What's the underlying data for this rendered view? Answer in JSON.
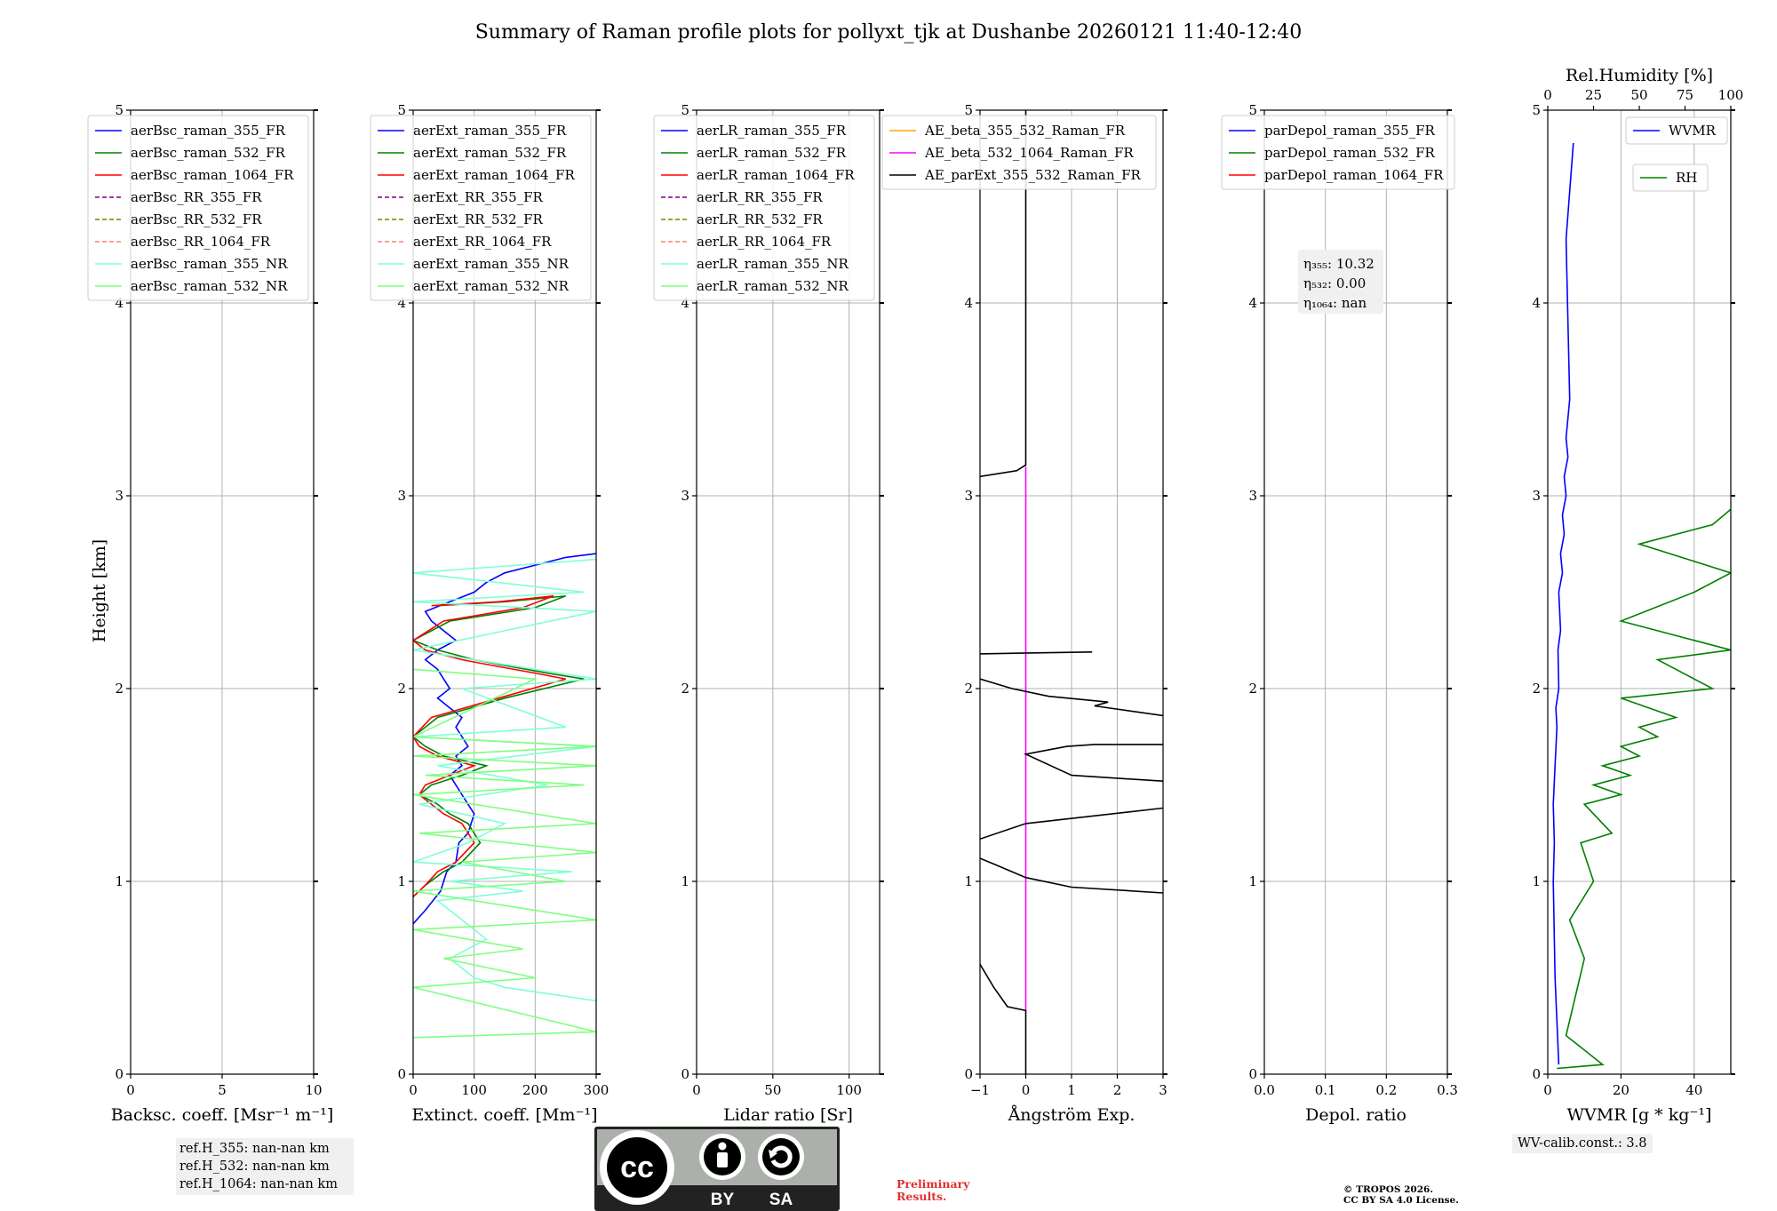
{
  "title": "Summary of Raman profile plots for pollyxt_tjk at Dushanbe 20260121 11:40-12:40",
  "height_axis_label": "Height [km]",
  "panels": [
    {
      "id": "bsc",
      "xlabel": "Backsc. coeff. [Msr⁻¹ m⁻¹]",
      "xlim": [
        0,
        10
      ],
      "xticks": [
        0,
        5,
        10
      ],
      "xtick_labels": [
        "0",
        "5",
        "10"
      ],
      "legend": [
        {
          "label": "aerBsc_raman_355_FR",
          "color": "#0000ff",
          "dash": false
        },
        {
          "label": "aerBsc_raman_532_FR",
          "color": "#008000",
          "dash": false
        },
        {
          "label": "aerBsc_raman_1064_FR",
          "color": "#ff0000",
          "dash": false
        },
        {
          "label": "aerBsc_RR_355_FR",
          "color": "#800080",
          "dash": true
        },
        {
          "label": "aerBsc_RR_532_FR",
          "color": "#808000",
          "dash": true
        },
        {
          "label": "aerBsc_RR_1064_FR",
          "color": "#fa8072",
          "dash": true
        },
        {
          "label": "aerBsc_raman_355_NR",
          "color": "#7fffd4",
          "dash": false
        },
        {
          "label": "aerBsc_raman_532_NR",
          "color": "#7fff7f",
          "dash": false
        }
      ]
    },
    {
      "id": "ext",
      "xlabel": "Extinct. coeff. [Mm⁻¹]",
      "xlim": [
        0,
        300
      ],
      "xticks": [
        0,
        100,
        200,
        300
      ],
      "xtick_labels": [
        "0",
        "100",
        "200",
        "300"
      ],
      "legend": [
        {
          "label": "aerExt_raman_355_FR",
          "color": "#0000ff",
          "dash": false
        },
        {
          "label": "aerExt_raman_532_FR",
          "color": "#008000",
          "dash": false
        },
        {
          "label": "aerExt_raman_1064_FR",
          "color": "#ff0000",
          "dash": false
        },
        {
          "label": "aerExt_RR_355_FR",
          "color": "#800080",
          "dash": true
        },
        {
          "label": "aerExt_RR_532_FR",
          "color": "#808000",
          "dash": true
        },
        {
          "label": "aerExt_RR_1064_FR",
          "color": "#fa8072",
          "dash": true
        },
        {
          "label": "aerExt_raman_355_NR",
          "color": "#7fffd4",
          "dash": false
        },
        {
          "label": "aerExt_raman_532_NR",
          "color": "#7fff7f",
          "dash": false
        }
      ]
    },
    {
      "id": "lr",
      "xlabel": "Lidar ratio [Sr]",
      "xlim": [
        0,
        120
      ],
      "xticks": [
        0,
        50,
        100
      ],
      "xtick_labels": [
        "0",
        "50",
        "100"
      ],
      "legend": [
        {
          "label": "aerLR_raman_355_FR",
          "color": "#0000ff",
          "dash": false
        },
        {
          "label": "aerLR_raman_532_FR",
          "color": "#008000",
          "dash": false
        },
        {
          "label": "aerLR_raman_1064_FR",
          "color": "#ff0000",
          "dash": false
        },
        {
          "label": "aerLR_RR_355_FR",
          "color": "#800080",
          "dash": true
        },
        {
          "label": "aerLR_RR_532_FR",
          "color": "#808000",
          "dash": true
        },
        {
          "label": "aerLR_RR_1064_FR",
          "color": "#fa8072",
          "dash": true
        },
        {
          "label": "aerLR_raman_355_NR",
          "color": "#7fffd4",
          "dash": false
        },
        {
          "label": "aerLR_raman_532_NR",
          "color": "#7fff7f",
          "dash": false
        }
      ]
    },
    {
      "id": "ae",
      "xlabel": "Ångström Exp.",
      "xlim": [
        -1,
        3
      ],
      "xticks": [
        -1,
        0,
        1,
        2,
        3
      ],
      "xtick_labels": [
        "−1",
        "0",
        "1",
        "2",
        "3"
      ],
      "legend": [
        {
          "label": "AE_beta_355_532_Raman_FR",
          "color": "#ffa500",
          "dash": false
        },
        {
          "label": "AE_beta_532_1064_Raman_FR",
          "color": "#ff00ff",
          "dash": false
        },
        {
          "label": "AE_parExt_355_532_Raman_FR",
          "color": "#000000",
          "dash": false
        }
      ]
    },
    {
      "id": "depol",
      "xlabel": "Depol. ratio",
      "xlim": [
        0,
        0.3
      ],
      "xticks": [
        0,
        0.1,
        0.2,
        0.3
      ],
      "xtick_labels": [
        "0.0",
        "0.1",
        "0.2",
        "0.3"
      ],
      "legend": [
        {
          "label": "parDepol_raman_355_FR",
          "color": "#0000ff",
          "dash": false
        },
        {
          "label": "parDepol_raman_532_FR",
          "color": "#008000",
          "dash": false
        },
        {
          "label": "parDepol_raman_1064_FR",
          "color": "#ff0000",
          "dash": false
        }
      ],
      "eta_box": [
        "η₃₅₅: 10.32",
        "η₅₃₂: 0.00",
        "η₁₀₆₄: nan"
      ]
    },
    {
      "id": "wv",
      "xlabel": "WVMR [g * kg⁻¹]",
      "xlim": [
        0,
        50
      ],
      "xticks": [
        0,
        20,
        40
      ],
      "xtick_labels": [
        "0",
        "20",
        "40"
      ],
      "top_xlabel": "Rel.Humidity [%]",
      "top_xlim": [
        0,
        100
      ],
      "top_xticks": [
        0,
        25,
        50,
        75,
        100
      ],
      "top_xtick_labels": [
        "0",
        "25",
        "50",
        "75",
        "100"
      ],
      "legend": [
        {
          "label": "WVMR",
          "color": "#0000ff",
          "dash": false
        },
        {
          "label": "RH",
          "color": "#008000",
          "dash": false
        }
      ]
    }
  ],
  "yticks": [
    0,
    1,
    2,
    3,
    4,
    5
  ],
  "ytick_labels": [
    "0",
    "1",
    "2",
    "3",
    "4",
    "5"
  ],
  "chart_data": {
    "type": "line",
    "title": "Summary of Raman profile plots for pollyxt_tjk at Dushanbe 20260121 11:40-12:40",
    "ylabel": "Height [km]",
    "ylim": [
      0,
      5
    ],
    "grid": true,
    "series": [
      {
        "panel": "ext",
        "name": "aerExt_raman_355_FR",
        "color": "#0000ff",
        "x": [
          0,
          20,
          45,
          55,
          70,
          75,
          90,
          100,
          80,
          60,
          80,
          70,
          90,
          70,
          80,
          60,
          40,
          60,
          50,
          40,
          20,
          40,
          70,
          50,
          30,
          20,
          60,
          100,
          120,
          150,
          200,
          250,
          300
        ],
        "y": [
          0.78,
          0.85,
          0.95,
          1.05,
          1.1,
          1.2,
          1.25,
          1.35,
          1.45,
          1.55,
          1.6,
          1.65,
          1.7,
          1.8,
          1.85,
          1.9,
          1.95,
          2.0,
          2.05,
          2.1,
          2.15,
          2.2,
          2.25,
          2.3,
          2.35,
          2.4,
          2.45,
          2.5,
          2.55,
          2.6,
          2.64,
          2.68,
          2.7
        ]
      },
      {
        "panel": "ext",
        "name": "aerExt_raman_532_FR",
        "color": "#008000",
        "x": [
          0,
          20,
          50,
          80,
          110,
          90,
          60,
          40,
          10,
          30,
          80,
          120,
          50,
          20,
          0,
          40,
          150,
          280,
          220,
          150,
          100,
          40,
          0,
          60,
          200,
          250,
          150,
          40
        ],
        "y": [
          0.92,
          0.98,
          1.05,
          1.1,
          1.2,
          1.3,
          1.35,
          1.4,
          1.45,
          1.5,
          1.55,
          1.6,
          1.65,
          1.7,
          1.75,
          1.85,
          1.95,
          2.05,
          2.08,
          2.12,
          2.15,
          2.2,
          2.25,
          2.35,
          2.42,
          2.48,
          2.45,
          2.43
        ]
      },
      {
        "panel": "ext",
        "name": "aerExt_raman_1064_FR",
        "color": "#ff0000",
        "x": [
          0,
          20,
          40,
          70,
          100,
          80,
          50,
          30,
          10,
          20,
          60,
          100,
          40,
          10,
          0,
          30,
          140,
          250,
          200,
          130,
          80,
          20,
          0,
          50,
          180,
          230,
          140,
          30
        ],
        "y": [
          0.92,
          0.98,
          1.05,
          1.1,
          1.2,
          1.3,
          1.35,
          1.4,
          1.45,
          1.5,
          1.55,
          1.6,
          1.65,
          1.7,
          1.75,
          1.85,
          1.95,
          2.05,
          2.08,
          2.12,
          2.15,
          2.2,
          2.25,
          2.35,
          2.42,
          2.48,
          2.45,
          2.43
        ]
      },
      {
        "panel": "ext",
        "name": "aerExt_raman_355_NR",
        "color": "#7fffd4",
        "x": [
          300,
          150,
          100,
          60,
          120,
          40,
          180,
          60,
          260,
          0,
          90,
          150,
          10,
          220,
          40,
          300,
          0,
          250,
          80,
          300,
          0,
          150,
          300,
          0,
          280,
          0,
          300
        ],
        "y": [
          0.38,
          0.45,
          0.5,
          0.6,
          0.7,
          0.9,
          0.95,
          1.0,
          1.05,
          1.1,
          1.2,
          1.3,
          1.4,
          1.5,
          1.6,
          1.7,
          1.75,
          1.8,
          2.0,
          2.05,
          2.2,
          2.3,
          2.4,
          2.45,
          2.5,
          2.6,
          2.67
        ]
      },
      {
        "panel": "ext",
        "name": "aerExt_raman_532_NR",
        "color": "#7fff7f",
        "x": [
          0,
          300,
          0,
          200,
          50,
          180,
          0,
          300,
          0,
          250,
          80,
          300,
          10,
          300,
          0,
          280,
          20,
          300,
          0,
          300,
          0,
          200,
          0
        ],
        "y": [
          0.19,
          0.22,
          0.45,
          0.5,
          0.6,
          0.65,
          0.75,
          0.8,
          0.95,
          1.0,
          1.1,
          1.15,
          1.25,
          1.3,
          1.45,
          1.5,
          1.55,
          1.6,
          1.65,
          1.7,
          1.75,
          2.05,
          2.1
        ]
      },
      {
        "panel": "ae",
        "name": "AE_beta_532_1064_Raman_FR",
        "color": "#ff00ff",
        "x": [
          0,
          0
        ],
        "y": [
          0.33,
          3.15
        ]
      },
      {
        "panel": "ae",
        "name": "AE_parExt_355_532_Raman_FR",
        "color": "#000000",
        "x": [
          0,
          0,
          -0.4,
          -0.7,
          -1.0,
          null,
          -1.0,
          -0.6,
          0.0,
          1.0,
          3.0,
          null,
          3.0,
          0.0,
          -1.0,
          null,
          -1.0,
          0.0,
          3.0,
          null,
          3.0,
          1.0,
          0.0,
          0.9,
          1.5,
          3.0,
          null,
          3.0,
          1.5,
          1.8,
          0.5,
          -0.3,
          -1.0,
          null,
          -1.0,
          1.45,
          null,
          -1.0,
          -0.2,
          0.0,
          0.0
        ],
        "y": [
          0.0,
          0.33,
          0.35,
          0.45,
          0.57,
          null,
          1.12,
          1.08,
          1.02,
          0.97,
          0.94,
          null,
          1.38,
          1.3,
          1.22,
          null,
          1.22,
          1.3,
          1.38,
          null,
          1.52,
          1.55,
          1.66,
          1.7,
          1.71,
          1.71,
          null,
          1.86,
          1.91,
          1.93,
          1.96,
          2.0,
          2.05,
          null,
          2.18,
          2.19,
          null,
          3.1,
          3.13,
          3.16,
          5.0
        ]
      },
      {
        "panel": "wv",
        "name": "WVMR",
        "color": "#0000ff",
        "x": [
          3,
          2,
          1.5,
          1.8,
          1.5,
          2,
          2.5,
          2.2,
          3,
          2.8,
          3.5,
          3,
          4,
          3.5,
          4.5,
          4,
          5,
          4.5,
          5.5,
          5,
          6,
          5,
          7
        ],
        "y": [
          0.05,
          0.5,
          1.0,
          1.2,
          1.4,
          1.6,
          1.8,
          1.9,
          2.0,
          2.2,
          2.3,
          2.5,
          2.6,
          2.7,
          2.8,
          2.9,
          3.0,
          3.1,
          3.2,
          3.3,
          3.5,
          4.33,
          4.83
        ]
      },
      {
        "panel": "wv",
        "name": "RH",
        "color": "#008000",
        "x": [
          5,
          30,
          10,
          20,
          12,
          25,
          18,
          35,
          20,
          40,
          25,
          45,
          30,
          50,
          40,
          60,
          50,
          70,
          40,
          90,
          60,
          100,
          40,
          80,
          100,
          50,
          90,
          100
        ],
        "y": [
          0.03,
          0.05,
          0.2,
          0.6,
          0.8,
          1.0,
          1.2,
          1.25,
          1.4,
          1.45,
          1.5,
          1.55,
          1.6,
          1.65,
          1.7,
          1.75,
          1.8,
          1.85,
          1.95,
          2.0,
          2.15,
          2.2,
          2.35,
          2.5,
          2.6,
          2.75,
          2.85,
          2.93
        ]
      }
    ]
  },
  "ref_heights": [
    "ref.H_355: nan-nan km",
    "ref.H_532: nan-nan km",
    "ref.H_1064: nan-nan km"
  ],
  "wv_calib": "WV-calib.const.: 3.8",
  "license_badge": {
    "cc": "cc",
    "by": "BY",
    "sa": "SA"
  },
  "preliminary": [
    "Preliminary",
    "Results."
  ],
  "copyright": [
    "© TROPOS 2026.",
    "CC BY SA 4.0 License."
  ]
}
